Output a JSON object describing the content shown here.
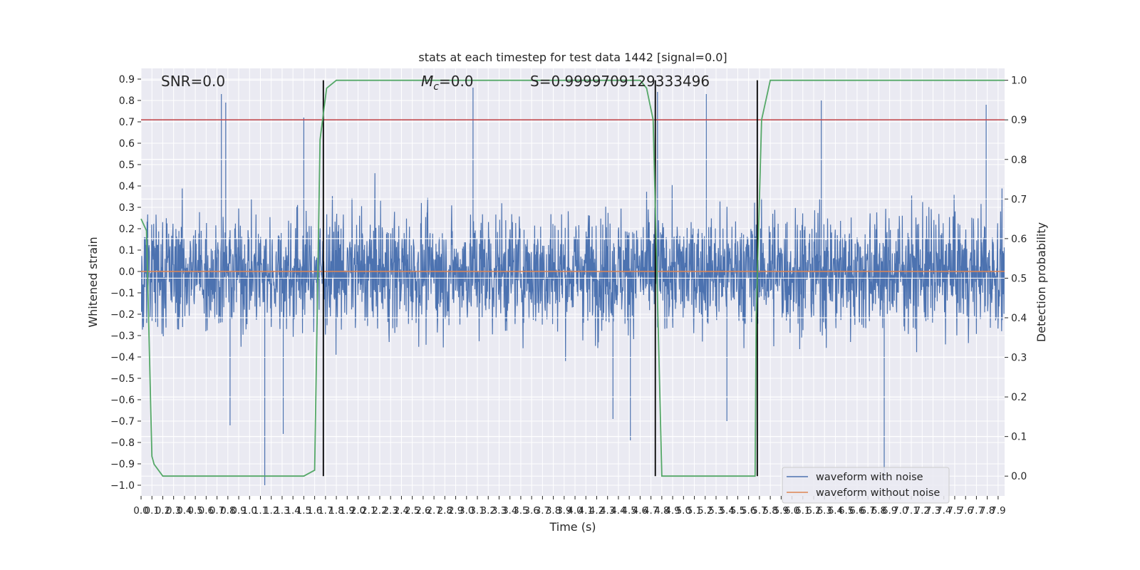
{
  "chart_data": {
    "type": "line",
    "title": "stats at each timestep for test data 1442 [signal=0.0]",
    "xlabel": "Time (s)",
    "ylabel": "Whitened strain",
    "y2label": "Detection probability",
    "xlim": [
      0.0,
      7.96
    ],
    "ylim": [
      -1.05,
      0.95
    ],
    "y2lim": [
      -0.05,
      1.03
    ],
    "x_ticks": [
      "0.0",
      "0.1",
      "0.2",
      "0.3",
      "0.4",
      "0.5",
      "0.6",
      "0.7",
      "0.8",
      "0.9",
      "1.0",
      "1.1",
      "1.2",
      "1.3",
      "1.4",
      "1.5",
      "1.6",
      "1.7",
      "1.8",
      "1.9",
      "2.0",
      "2.1",
      "2.2",
      "2.3",
      "2.4",
      "2.5",
      "2.6",
      "2.7",
      "2.8",
      "2.9",
      "3.0",
      "3.1",
      "3.2",
      "3.3",
      "3.4",
      "3.5",
      "3.6",
      "3.7",
      "3.8",
      "3.9",
      "4.0",
      "4.1",
      "4.2",
      "4.3",
      "4.4",
      "4.5",
      "4.6",
      "4.7",
      "4.8",
      "4.9",
      "5.0",
      "5.1",
      "5.2",
      "5.3",
      "5.4",
      "5.5",
      "5.6",
      "5.7",
      "5.8",
      "5.9",
      "6.0",
      "6.1",
      "6.2",
      "6.3",
      "6.4",
      "6.5",
      "6.6",
      "6.7",
      "6.8",
      "6.9",
      "7.0",
      "7.1",
      "7.2",
      "7.3",
      "7.4",
      "7.5",
      "7.6",
      "7.7",
      "7.8",
      "7.9"
    ],
    "y_ticks": [
      "0.9",
      "0.8",
      "0.7",
      "0.6",
      "0.5",
      "0.4",
      "0.3",
      "0.2",
      "0.1",
      "0.0",
      "−0.1",
      "−0.2",
      "−0.3",
      "−0.4",
      "−0.5",
      "−0.6",
      "−0.7",
      "−0.8",
      "−0.9",
      "−1.0"
    ],
    "y2_ticks": [
      "1.0",
      "0.9",
      "0.8",
      "0.7",
      "0.6",
      "0.5",
      "0.4",
      "0.3",
      "0.2",
      "0.1",
      "0.0"
    ],
    "annotations": {
      "snr": "SNR=0.0",
      "mc_symbol": "M",
      "mc_sub": "c",
      "mc_value": "=0.0",
      "s": "S=0.9999709129333496"
    },
    "series": [
      {
        "name": "waveform with noise",
        "color": "#4c72b0",
        "description": "dense gaussian-like noise, envelope roughly -0.5..0.5 with spikes up to 0.86 and down to -1.0",
        "spikes": [
          [
            0.74,
            0.83
          ],
          [
            0.78,
            0.79
          ],
          [
            1.14,
            -1.0
          ],
          [
            1.31,
            -0.76
          ],
          [
            1.5,
            0.72
          ],
          [
            3.06,
            0.86
          ],
          [
            4.51,
            -0.79
          ],
          [
            4.76,
            0.84
          ],
          [
            5.21,
            0.83
          ],
          [
            6.27,
            0.8
          ],
          [
            6.85,
            -0.97
          ],
          [
            7.79,
            0.78
          ],
          [
            0.82,
            -0.72
          ],
          [
            4.35,
            -0.69
          ],
          [
            5.4,
            -0.7
          ]
        ]
      },
      {
        "name": "waveform without noise",
        "color": "#dd8452",
        "y": 0.0
      },
      {
        "name": "Detection probability",
        "color": "#55a868",
        "axis": "y2",
        "x": [
          0.0,
          0.05,
          0.1,
          0.12,
          0.2,
          0.6,
          1.5,
          1.6,
          1.65,
          1.71,
          1.8,
          4.5,
          4.6,
          4.66,
          4.72,
          4.8,
          5.6,
          5.66,
          5.67,
          5.72,
          5.8,
          7.96
        ],
        "y": [
          0.65,
          0.62,
          0.05,
          0.03,
          0.0,
          0.0,
          0.0,
          0.015,
          0.85,
          0.98,
          1.0,
          1.0,
          1.0,
          0.98,
          0.9,
          0.0,
          0.0,
          0.0,
          0.4,
          0.9,
          1.0,
          1.0
        ]
      },
      {
        "name": "threshold",
        "color": "#c44e52",
        "axis": "y2",
        "y": 0.9
      }
    ],
    "vlines": [
      1.68,
      4.74,
      5.68
    ],
    "legend": {
      "position": "lower-right",
      "entries": [
        "waveform with noise",
        "waveform without noise"
      ]
    }
  },
  "colors": {
    "axes_bg": "#eaeaf2",
    "grid": "#ffffff",
    "noise": "#4c72b0",
    "clean": "#dd8452",
    "prob": "#55a868",
    "threshold": "#c44e52",
    "vline": "#000000"
  }
}
